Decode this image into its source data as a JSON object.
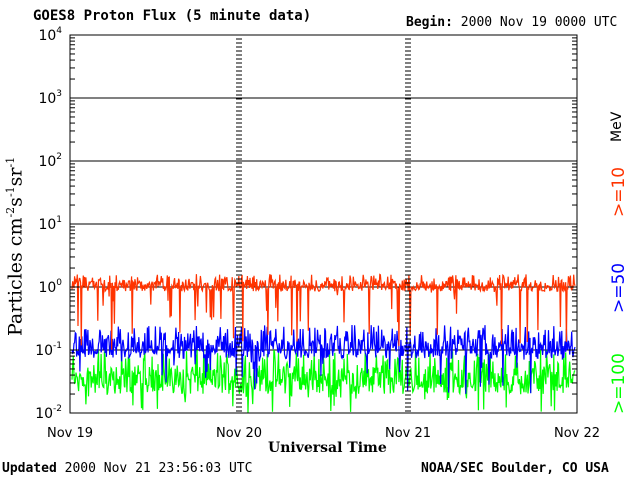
{
  "header": {
    "title": "GOES8 Proton Flux (5 minute data)",
    "begin_label": "Begin:",
    "begin_value": "2000 Nov 19 0000 UTC"
  },
  "footer": {
    "updated_label": "Updated",
    "updated_value": "2000 Nov 21 23:56:03 UTC",
    "credit": "NOAA/SEC Boulder, CO USA"
  },
  "legend": {
    "unit": "MeV",
    "items": [
      {
        "label": ">=10",
        "color": "#ff3300"
      },
      {
        "label": ">=50",
        "color": "#0000ff"
      },
      {
        "label": ">=100",
        "color": "#00ff00"
      }
    ]
  },
  "chart_data": {
    "type": "line",
    "title": "GOES8 Proton Flux (5 minute data)",
    "xlabel": "Universal Time",
    "ylabel": "Particles cm^-2 s^-1 sr^-1",
    "yscale": "log",
    "ylim": [
      0.01,
      10000
    ],
    "y_ticks": [
      {
        "value": 0.01,
        "base": "10",
        "exp": "-2"
      },
      {
        "value": 0.1,
        "base": "10",
        "exp": "-1"
      },
      {
        "value": 1,
        "base": "10",
        "exp": "0"
      },
      {
        "value": 10,
        "base": "10",
        "exp": "1"
      },
      {
        "value": 100,
        "base": "10",
        "exp": "2"
      },
      {
        "value": 1000,
        "base": "10",
        "exp": "3"
      },
      {
        "value": 10000,
        "base": "10",
        "exp": "4"
      }
    ],
    "x_range": [
      "2000-11-19",
      "2000-11-22"
    ],
    "x_ticks": [
      {
        "date": "2000-11-19",
        "label": "Nov 19"
      },
      {
        "date": "2000-11-20",
        "label": "Nov 20"
      },
      {
        "date": "2000-11-21",
        "label": "Nov 21"
      },
      {
        "date": "2000-11-22",
        "label": "Nov 22"
      }
    ],
    "grid": "horizontal lines at each decade",
    "series": [
      {
        "name": ">=10",
        "color": "#ff3300",
        "typical": 1.0,
        "low": 0.7,
        "high": 1.6,
        "min_dip": 0.1
      },
      {
        "name": ">=50",
        "color": "#0000ff",
        "typical": 0.08,
        "low": 0.05,
        "high": 0.25,
        "min_dip": 0.02
      },
      {
        "name": ">=100",
        "color": "#00ff00",
        "typical": 0.03,
        "low": 0.012,
        "high": 0.1,
        "min_dip": 0.01
      }
    ]
  }
}
